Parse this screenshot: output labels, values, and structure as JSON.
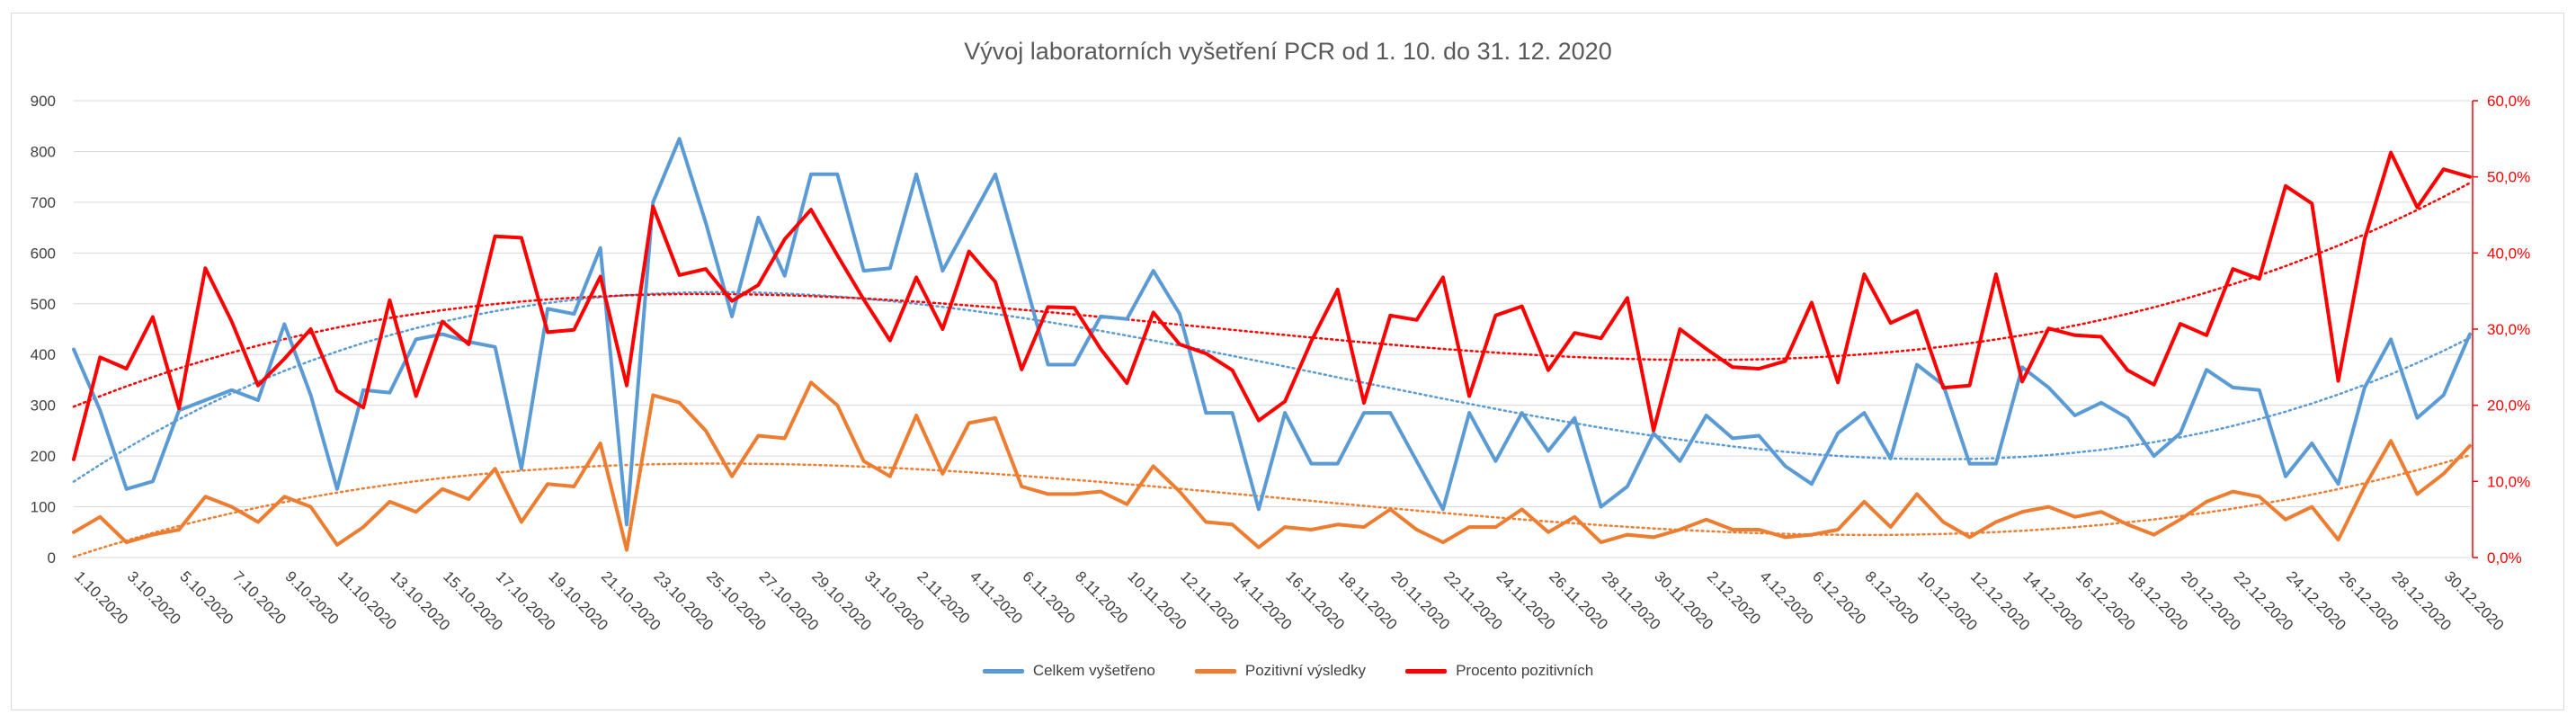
{
  "chart_data": {
    "type": "line",
    "title": "Vývoj laboratorních vyšetření PCR od 1. 10. do 31. 12. 2020",
    "xlabel": "",
    "ylabel": "",
    "x_tick_labels": [
      "1.10.2020",
      "3.10.2020",
      "5.10.2020",
      "7.10.2020",
      "9.10.2020",
      "11.10.2020",
      "13.10.2020",
      "15.10.2020",
      "17.10.2020",
      "19.10.2020",
      "21.10.2020",
      "23.10.2020",
      "25.10.2020",
      "27.10.2020",
      "29.10.2020",
      "31.10.2020",
      "2.11.2020",
      "4.11.2020",
      "6.11.2020",
      "8.11.2020",
      "10.11.2020",
      "12.11.2020",
      "14.11.2020",
      "16.11.2020",
      "18.11.2020",
      "20.11.2020",
      "22.11.2020",
      "24.11.2020",
      "26.11.2020",
      "28.11.2020",
      "30.11.2020",
      "2.12.2020",
      "4.12.2020",
      "6.12.2020",
      "8.12.2020",
      "10.12.2020",
      "12.12.2020",
      "14.12.2020",
      "16.12.2020",
      "18.12.2020",
      "20.12.2020",
      "22.12.2020",
      "24.12.2020",
      "26.12.2020",
      "28.12.2020",
      "30.12.2020"
    ],
    "y_left": {
      "lim": [
        0,
        900
      ],
      "ticks": [
        "0",
        "100",
        "200",
        "300",
        "400",
        "500",
        "600",
        "700",
        "800",
        "900"
      ]
    },
    "y_right": {
      "lim": [
        0,
        60
      ],
      "ticks": [
        "0,0%",
        "10,0%",
        "20,0%",
        "30,0%",
        "40,0%",
        "50,0%",
        "60,0%"
      ]
    },
    "grid": true,
    "legend_position": "bottom",
    "trendlines": "polynomial, dotted, one per series",
    "series": [
      {
        "name": "Celkem vyšetřeno",
        "axis": "left",
        "color": "#5b9bd5",
        "values": [
          410,
          290,
          135,
          150,
          290,
          310,
          330,
          310,
          460,
          320,
          135,
          330,
          325,
          430,
          440,
          425,
          415,
          175,
          490,
          480,
          610,
          65,
          700,
          825,
          660,
          475,
          670,
          555,
          755,
          755,
          565,
          570,
          755,
          565,
          660,
          755,
          570,
          380,
          380,
          475,
          470,
          565,
          480,
          285,
          285,
          95,
          285,
          185,
          185,
          285,
          285,
          190,
          95,
          285,
          190,
          285,
          210,
          275,
          100,
          140,
          245,
          190,
          280,
          235,
          240,
          180,
          145,
          245,
          285,
          195,
          380,
          340,
          185,
          185,
          375,
          335,
          280,
          305,
          275,
          200,
          245,
          370,
          335,
          330,
          160,
          225,
          145,
          335,
          430,
          275,
          320,
          440
        ]
      },
      {
        "name": "Pozitivní výsledky",
        "axis": "left",
        "color": "#ed7d31",
        "values": [
          50,
          80,
          30,
          45,
          55,
          120,
          100,
          70,
          120,
          100,
          25,
          60,
          110,
          90,
          135,
          115,
          175,
          70,
          145,
          140,
          225,
          15,
          320,
          305,
          250,
          160,
          240,
          235,
          345,
          300,
          190,
          160,
          280,
          165,
          265,
          275,
          140,
          125,
          125,
          130,
          105,
          180,
          130,
          70,
          65,
          20,
          60,
          55,
          65,
          60,
          95,
          55,
          30,
          60,
          60,
          95,
          50,
          80,
          30,
          45,
          40,
          55,
          75,
          55,
          55,
          40,
          45,
          55,
          110,
          60,
          125,
          70,
          40,
          70,
          90,
          100,
          80,
          90,
          65,
          45,
          75,
          110,
          130,
          120,
          75,
          100,
          35,
          140,
          230,
          125,
          165,
          220
        ]
      },
      {
        "name": "Procento pozitivních",
        "axis": "right",
        "color": "#ff0000",
        "values": [
          12.9,
          26.3,
          24.8,
          31.6,
          19.6,
          38.0,
          31.0,
          22.6,
          26.1,
          30.0,
          21.9,
          19.7,
          33.8,
          21.2,
          31.0,
          28.0,
          42.2,
          42.0,
          29.6,
          29.9,
          36.9,
          22.6,
          46.1,
          37.1,
          37.9,
          33.7,
          35.8,
          41.8,
          45.7,
          39.7,
          33.9,
          28.5,
          36.8,
          30.0,
          40.2,
          36.2,
          24.7,
          32.9,
          32.8,
          27.4,
          22.9,
          32.2,
          28.0,
          26.8,
          24.6,
          18.0,
          20.5,
          28.4,
          35.2,
          20.3,
          31.8,
          31.2,
          36.8,
          21.2,
          31.8,
          33.0,
          24.6,
          29.5,
          28.8,
          34.1,
          16.7,
          30.0,
          27.4,
          25.0,
          24.8,
          25.8,
          33.5,
          23.0,
          37.2,
          30.8,
          32.4,
          22.3,
          22.6,
          37.2,
          23.1,
          30.1,
          29.2,
          29.0,
          24.6,
          22.7,
          30.7,
          29.2,
          37.9,
          36.6,
          48.8,
          46.5,
          23.2,
          41.8,
          53.2,
          46.0,
          51.0,
          50.0
        ]
      }
    ]
  }
}
